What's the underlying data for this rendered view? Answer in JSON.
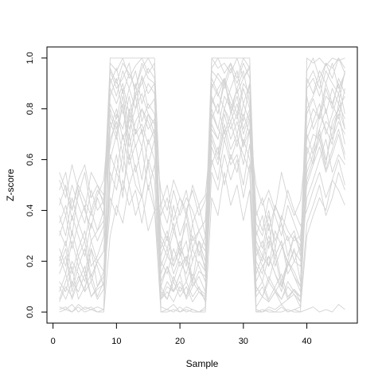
{
  "chart_data": {
    "type": "line",
    "title": "",
    "xlabel": "Sample",
    "ylabel": "Z-score",
    "xlim": [
      1,
      46
    ],
    "ylim": [
      0,
      1
    ],
    "x_ticks": [
      0,
      10,
      20,
      30,
      40
    ],
    "y_ticks": [
      0.0,
      0.2,
      0.4,
      0.6,
      0.8,
      1.0
    ],
    "y_tick_labels": [
      "0.0",
      "0.2",
      "0.4",
      "0.6",
      "0.8",
      "1.0"
    ],
    "grid": false,
    "legend": "none",
    "line_color": "#d3d3d3",
    "x": [
      1,
      2,
      3,
      4,
      5,
      6,
      7,
      8,
      9,
      10,
      11,
      12,
      13,
      14,
      15,
      16,
      17,
      18,
      19,
      20,
      21,
      22,
      23,
      24,
      25,
      26,
      27,
      28,
      29,
      30,
      31,
      32,
      33,
      34,
      35,
      36,
      37,
      38,
      39,
      40,
      41,
      42,
      43,
      44,
      45,
      46
    ],
    "series": [
      {
        "values": [
          0.02,
          0.01,
          0.03,
          0.0,
          0.02,
          0.01,
          0.02,
          0.01,
          1.0,
          1.0,
          1.0,
          1.0,
          1.0,
          1.0,
          1.0,
          1.0,
          0.0,
          0.0,
          0.01,
          0.0,
          0.01,
          0.0,
          0.0,
          0.01,
          1.0,
          1.0,
          1.0,
          1.0,
          1.0,
          1.0,
          1.0,
          0.0,
          0.0,
          0.01,
          0.0,
          0.0,
          0.01,
          0.0,
          0.0,
          1.0,
          0.98,
          1.0,
          0.97,
          1.0,
          0.99,
          1.0
        ]
      },
      {
        "values": [
          0.35,
          0.42,
          0.3,
          0.48,
          0.4,
          0.33,
          0.45,
          0.38,
          0.92,
          0.85,
          0.95,
          0.88,
          0.8,
          0.93,
          0.86,
          0.9,
          0.15,
          0.22,
          0.18,
          0.25,
          0.12,
          0.2,
          0.28,
          0.16,
          0.9,
          0.85,
          0.92,
          0.78,
          0.88,
          0.95,
          0.82,
          0.2,
          0.15,
          0.28,
          0.22,
          0.1,
          0.18,
          0.25,
          0.12,
          0.85,
          0.72,
          0.78,
          0.9,
          0.82,
          0.76,
          0.88
        ]
      },
      {
        "values": [
          0.1,
          0.05,
          0.12,
          0.08,
          0.15,
          0.06,
          0.09,
          0.11,
          0.8,
          0.72,
          0.85,
          0.68,
          0.9,
          0.75,
          0.82,
          0.78,
          0.05,
          0.1,
          0.08,
          0.12,
          0.06,
          0.15,
          0.09,
          0.07,
          0.85,
          0.78,
          0.92,
          0.8,
          0.88,
          0.75,
          0.9,
          0.08,
          0.12,
          0.05,
          0.1,
          0.15,
          0.06,
          0.09,
          0.04,
          0.65,
          0.58,
          0.72,
          0.8,
          0.68,
          0.75,
          0.7
        ]
      },
      {
        "values": [
          0.48,
          0.55,
          0.4,
          0.52,
          0.58,
          0.45,
          0.5,
          0.42,
          0.75,
          0.68,
          0.82,
          0.6,
          0.72,
          0.65,
          0.78,
          0.7,
          0.3,
          0.25,
          0.35,
          0.22,
          0.4,
          0.28,
          0.32,
          0.26,
          0.8,
          0.72,
          0.68,
          0.75,
          0.82,
          0.7,
          0.78,
          0.35,
          0.3,
          0.4,
          0.25,
          0.38,
          0.32,
          0.28,
          0.3,
          0.55,
          0.62,
          0.7,
          0.58,
          0.75,
          0.8,
          0.72
        ]
      },
      {
        "values": [
          0.2,
          0.28,
          0.15,
          0.25,
          0.32,
          0.18,
          0.22,
          0.3,
          0.95,
          0.88,
          0.92,
          0.98,
          0.85,
          0.9,
          0.96,
          0.92,
          0.2,
          0.15,
          0.25,
          0.18,
          0.22,
          0.12,
          0.28,
          0.2,
          0.95,
          0.92,
          0.88,
          0.96,
          0.9,
          0.98,
          0.92,
          0.15,
          0.22,
          0.18,
          0.25,
          0.12,
          0.2,
          0.16,
          0.1,
          0.88,
          0.92,
          0.85,
          0.95,
          0.9,
          0.86,
          0.94
        ]
      },
      {
        "values": [
          0.05,
          0.12,
          0.2,
          0.15,
          0.08,
          0.25,
          0.18,
          0.1,
          0.6,
          0.7,
          0.55,
          0.78,
          0.65,
          0.72,
          0.58,
          0.68,
          0.1,
          0.18,
          0.12,
          0.2,
          0.15,
          0.25,
          0.18,
          0.12,
          0.7,
          0.62,
          0.78,
          0.68,
          0.75,
          0.65,
          0.72,
          0.25,
          0.18,
          0.12,
          0.22,
          0.28,
          0.15,
          0.2,
          0.18,
          0.45,
          0.52,
          0.6,
          0.68,
          0.55,
          0.62,
          0.58
        ]
      },
      {
        "values": [
          0.38,
          0.3,
          0.45,
          0.35,
          0.28,
          0.4,
          0.32,
          0.36,
          0.85,
          0.92,
          0.78,
          0.88,
          0.95,
          0.82,
          0.9,
          0.86,
          0.42,
          0.35,
          0.48,
          0.38,
          0.45,
          0.4,
          0.32,
          0.36,
          0.82,
          0.88,
          0.92,
          0.85,
          0.78,
          0.9,
          0.86,
          0.4,
          0.32,
          0.45,
          0.38,
          0.3,
          0.42,
          0.35,
          0.28,
          0.72,
          0.8,
          0.76,
          0.85,
          0.82,
          0.9,
          0.78
        ]
      },
      {
        "values": [
          0.01,
          0.02,
          0.0,
          0.03,
          0.01,
          0.02,
          0.0,
          0.01,
          0.55,
          0.48,
          0.62,
          0.5,
          0.58,
          0.45,
          0.6,
          0.52,
          0.02,
          0.01,
          0.03,
          0.0,
          0.02,
          0.01,
          0.0,
          0.02,
          0.65,
          0.58,
          0.72,
          0.6,
          0.68,
          0.62,
          0.55,
          0.01,
          0.0,
          0.02,
          0.01,
          0.03,
          0.0,
          0.01,
          0.02,
          0.3,
          0.38,
          0.45,
          0.4,
          0.52,
          0.48,
          0.42
        ]
      },
      {
        "values": [
          0.25,
          0.18,
          0.32,
          0.22,
          0.15,
          0.28,
          0.2,
          0.24,
          0.72,
          0.8,
          0.68,
          0.75,
          0.85,
          0.7,
          0.78,
          0.74,
          0.25,
          0.32,
          0.2,
          0.28,
          0.18,
          0.35,
          0.22,
          0.3,
          0.78,
          0.72,
          0.85,
          0.8,
          0.7,
          0.82,
          0.75,
          0.28,
          0.22,
          0.35,
          0.18,
          0.25,
          0.3,
          0.2,
          0.26,
          0.62,
          0.7,
          0.68,
          0.75,
          0.72,
          0.8,
          0.85
        ]
      },
      {
        "values": [
          0.42,
          0.5,
          0.36,
          0.46,
          0.55,
          0.4,
          0.48,
          0.44,
          0.98,
          0.95,
          1.0,
          0.92,
          0.97,
          1.0,
          0.94,
          0.98,
          0.38,
          0.45,
          0.32,
          0.4,
          0.48,
          0.35,
          0.42,
          0.3,
          1.0,
          0.96,
          0.98,
          0.94,
          1.0,
          0.92,
          0.97,
          0.3,
          0.38,
          0.25,
          0.42,
          0.35,
          0.28,
          0.32,
          0.22,
          0.95,
          1.0,
          0.92,
          0.98,
          0.96,
          1.0,
          0.94
        ]
      },
      {
        "values": [
          0.12,
          0.08,
          0.18,
          0.05,
          0.1,
          0.15,
          0.06,
          0.12,
          0.4,
          0.55,
          0.48,
          0.62,
          0.5,
          0.45,
          0.58,
          0.42,
          0.08,
          0.05,
          0.12,
          0.06,
          0.1,
          0.04,
          0.08,
          0.06,
          0.55,
          0.48,
          0.62,
          0.52,
          0.6,
          0.45,
          0.58,
          0.1,
          0.06,
          0.12,
          0.08,
          0.05,
          0.1,
          0.07,
          0.04,
          0.35,
          0.42,
          0.5,
          0.38,
          0.45,
          0.55,
          0.48
        ]
      },
      {
        "values": [
          0.3,
          0.38,
          0.25,
          0.35,
          0.42,
          0.28,
          0.32,
          0.4,
          0.88,
          0.82,
          0.9,
          0.78,
          0.86,
          0.92,
          0.8,
          0.84,
          0.22,
          0.3,
          0.18,
          0.26,
          0.35,
          0.2,
          0.28,
          0.24,
          0.92,
          0.86,
          0.8,
          0.88,
          0.95,
          0.82,
          0.9,
          0.22,
          0.28,
          0.18,
          0.32,
          0.26,
          0.2,
          0.3,
          0.24,
          0.8,
          0.85,
          0.92,
          0.78,
          0.88,
          0.82,
          0.95
        ]
      },
      {
        "values": [
          0.0,
          0.01,
          0.0,
          0.02,
          0.0,
          0.01,
          0.0,
          0.0,
          0.3,
          0.42,
          0.35,
          0.5,
          0.38,
          0.46,
          0.32,
          0.4,
          0.0,
          0.01,
          0.0,
          0.02,
          0.0,
          0.01,
          0.0,
          0.0,
          0.45,
          0.38,
          0.55,
          0.42,
          0.5,
          0.36,
          0.48,
          0.0,
          0.01,
          0.0,
          0.0,
          0.02,
          0.0,
          0.01,
          0.0,
          0.01,
          0.02,
          0.0,
          0.01,
          0.0,
          0.03,
          0.01
        ]
      },
      {
        "values": [
          0.52,
          0.45,
          0.58,
          0.48,
          0.4,
          0.55,
          0.5,
          0.46,
          0.65,
          0.78,
          0.72,
          0.85,
          0.7,
          0.8,
          0.75,
          0.68,
          0.48,
          0.4,
          0.52,
          0.45,
          0.38,
          0.5,
          0.42,
          0.46,
          0.72,
          0.68,
          0.8,
          0.75,
          0.65,
          0.78,
          0.7,
          0.5,
          0.42,
          0.48,
          0.4,
          0.55,
          0.45,
          0.38,
          0.44,
          0.68,
          0.75,
          0.82,
          0.7,
          0.78,
          0.86,
          0.72
        ]
      },
      {
        "values": [
          0.18,
          0.25,
          0.1,
          0.22,
          0.28,
          0.14,
          0.2,
          0.16,
          0.78,
          0.7,
          0.82,
          0.65,
          0.75,
          0.8,
          0.72,
          0.76,
          0.12,
          0.18,
          0.08,
          0.15,
          0.22,
          0.1,
          0.16,
          0.14,
          0.76,
          0.82,
          0.7,
          0.78,
          0.85,
          0.72,
          0.8,
          0.18,
          0.12,
          0.22,
          0.15,
          0.08,
          0.2,
          0.14,
          0.1,
          0.58,
          0.65,
          0.72,
          0.6,
          0.7,
          0.78,
          0.66
        ]
      },
      {
        "values": [
          0.08,
          0.15,
          0.05,
          0.12,
          0.18,
          0.06,
          0.1,
          0.14,
          0.5,
          0.62,
          0.45,
          0.7,
          0.55,
          0.65,
          0.48,
          0.58,
          0.35,
          0.28,
          0.42,
          0.3,
          0.38,
          0.25,
          0.32,
          0.36,
          0.6,
          0.52,
          0.68,
          0.58,
          0.62,
          0.5,
          0.66,
          0.32,
          0.25,
          0.38,
          0.28,
          0.35,
          0.22,
          0.3,
          0.26,
          0.5,
          0.58,
          0.65,
          0.55,
          0.62,
          0.7,
          0.6
        ]
      },
      {
        "values": [
          0.45,
          0.38,
          0.5,
          0.42,
          0.35,
          0.48,
          0.4,
          0.44,
          0.9,
          0.96,
          0.86,
          0.94,
          0.88,
          0.98,
          0.92,
          0.9,
          0.05,
          0.08,
          0.04,
          0.1,
          0.06,
          0.12,
          0.08,
          0.05,
          0.88,
          0.94,
          0.9,
          0.98,
          0.86,
          0.92,
          0.96,
          0.06,
          0.1,
          0.04,
          0.08,
          0.12,
          0.05,
          0.09,
          0.06,
          0.92,
          0.86,
          0.95,
          0.9,
          0.98,
          0.88,
          0.94
        ]
      },
      {
        "values": [
          0.22,
          0.15,
          0.28,
          0.18,
          0.25,
          0.12,
          0.2,
          0.24,
          0.68,
          0.75,
          0.62,
          0.8,
          0.7,
          0.74,
          0.66,
          0.72,
          0.28,
          0.22,
          0.32,
          0.25,
          0.2,
          0.3,
          0.24,
          0.18,
          0.74,
          0.68,
          0.8,
          0.72,
          0.78,
          0.66,
          0.76,
          0.26,
          0.2,
          0.3,
          0.22,
          0.28,
          0.18,
          0.24,
          0.2,
          0.7,
          0.62,
          0.78,
          0.72,
          0.66,
          0.82,
          0.76
        ]
      },
      {
        "values": [
          0.55,
          0.48,
          0.4,
          0.5,
          0.44,
          0.38,
          0.46,
          0.52,
          0.82,
          0.76,
          0.88,
          0.72,
          0.8,
          0.86,
          0.78,
          0.74,
          0.18,
          0.25,
          0.15,
          0.22,
          0.28,
          0.12,
          0.2,
          0.16,
          0.84,
          0.78,
          0.9,
          0.82,
          0.76,
          0.88,
          0.8,
          0.12,
          0.18,
          0.22,
          0.15,
          0.1,
          0.2,
          0.14,
          0.08,
          0.78,
          0.84,
          0.76,
          0.88,
          0.8,
          0.92,
          0.86
        ]
      },
      {
        "values": [
          0.15,
          0.22,
          0.08,
          0.18,
          0.12,
          0.25,
          0.1,
          0.16,
          0.45,
          0.38,
          0.52,
          0.42,
          0.48,
          0.35,
          0.5,
          0.4,
          0.42,
          0.5,
          0.36,
          0.45,
          0.4,
          0.48,
          0.38,
          0.44,
          0.58,
          0.65,
          0.5,
          0.62,
          0.55,
          0.68,
          0.6,
          0.38,
          0.45,
          0.32,
          0.42,
          0.36,
          0.48,
          0.4,
          0.34,
          0.4,
          0.48,
          0.55,
          0.45,
          0.52,
          0.6,
          0.5
        ]
      },
      {
        "values": [
          0.32,
          0.26,
          0.38,
          0.3,
          0.22,
          0.35,
          0.28,
          0.34,
          0.96,
          0.9,
          0.98,
          0.94,
          0.88,
          0.96,
          1.0,
          0.95,
          0.1,
          0.05,
          0.14,
          0.08,
          0.12,
          0.06,
          0.1,
          0.04,
          0.96,
          1.0,
          0.94,
          0.98,
          0.92,
          1.0,
          0.96,
          0.02,
          0.06,
          0.04,
          0.08,
          0.03,
          0.05,
          0.07,
          0.02,
          0.9,
          0.95,
          0.88,
          0.98,
          0.92,
          1.0,
          0.96
        ]
      },
      {
        "values": [
          0.04,
          0.1,
          0.06,
          0.14,
          0.08,
          0.12,
          0.05,
          0.09,
          0.62,
          0.55,
          0.7,
          0.58,
          0.66,
          0.52,
          0.68,
          0.6,
          0.06,
          0.12,
          0.08,
          0.15,
          0.05,
          0.1,
          0.14,
          0.08,
          0.68,
          0.6,
          0.74,
          0.64,
          0.7,
          0.58,
          0.72,
          0.1,
          0.06,
          0.14,
          0.09,
          0.05,
          0.12,
          0.08,
          0.06,
          0.52,
          0.6,
          0.68,
          0.56,
          0.64,
          0.72,
          0.62
        ]
      }
    ]
  }
}
